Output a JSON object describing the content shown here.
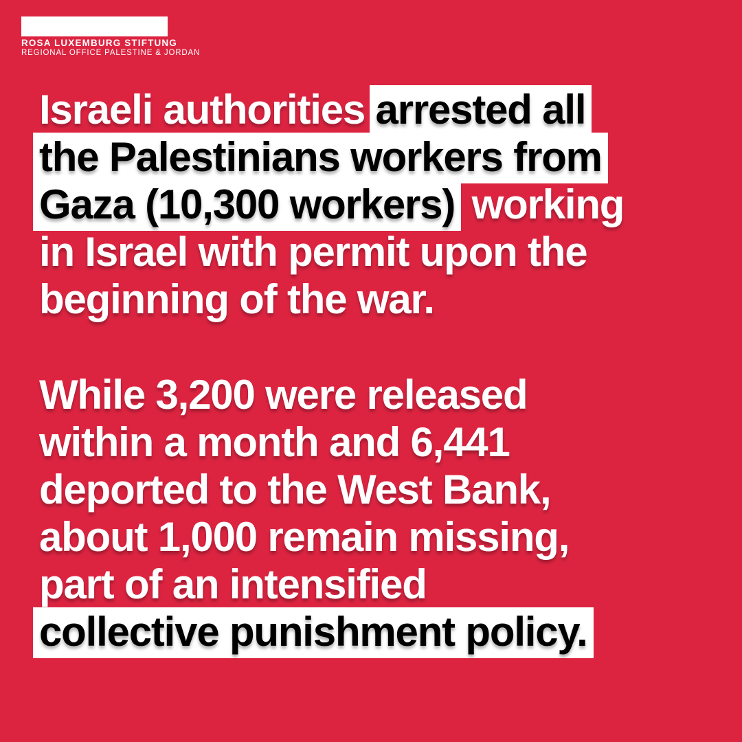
{
  "colors": {
    "background": "#DC2441",
    "text": "#FFFFFF",
    "highlight_bg": "#FFFFFF",
    "highlight_text": "#000000"
  },
  "logo": {
    "org_name": "ROSA LUXEMBURG STIFTUNG",
    "office": "REGIONAL OFFICE PALESTINE & JORDAN"
  },
  "paragraphs": [
    {
      "lines": [
        [
          {
            "text": "Israeli authorities ",
            "highlight": false
          },
          {
            "text": "arrested all",
            "highlight": true
          }
        ],
        [
          {
            "text": "the Palestinians workers from",
            "highlight": true
          }
        ],
        [
          {
            "text": "Gaza (10,300 workers)",
            "highlight": true
          },
          {
            "text": " working",
            "highlight": false
          }
        ],
        [
          {
            "text": "in Israel with permit upon the",
            "highlight": false
          }
        ],
        [
          {
            "text": "beginning of the war.",
            "highlight": false
          }
        ]
      ]
    },
    {
      "lines": [
        [
          {
            "text": "While 3,200 were released",
            "highlight": false
          }
        ],
        [
          {
            "text": "within a month and 6,441",
            "highlight": false
          }
        ],
        [
          {
            "text": "deported to the West Bank,",
            "highlight": false
          }
        ],
        [
          {
            "text": "about 1,000 remain missing,",
            "highlight": false
          }
        ],
        [
          {
            "text": "part of an intensified",
            "highlight": false
          }
        ],
        [
          {
            "text": "collective punishment policy.",
            "highlight": true
          }
        ]
      ]
    }
  ]
}
